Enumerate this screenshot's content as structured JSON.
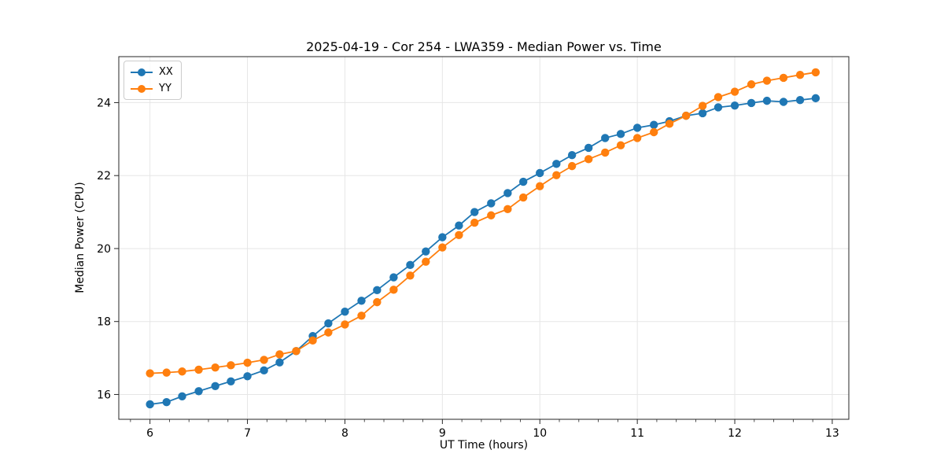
{
  "figure": {
    "title": "2025-04-19 - Cor 254 - LWA359 - Median Power vs. Time"
  },
  "chart_data": {
    "type": "line",
    "title": "2025-04-19 - Cor 254 - LWA359 - Median Power vs. Time",
    "xlabel": "UT Time (hours)",
    "ylabel": "Median Power (CPU)",
    "xlim": [
      5.68,
      13.17
    ],
    "ylim": [
      15.32,
      25.26
    ],
    "xticks": [
      6,
      7,
      8,
      9,
      10,
      11,
      12,
      13
    ],
    "yticks": [
      16,
      18,
      20,
      22,
      24
    ],
    "minor_xtick_step": 0.2,
    "grid": true,
    "legend": {
      "position": "upper-left",
      "entries": [
        "XX",
        "YY"
      ]
    },
    "x": [
      6.0,
      6.17,
      6.33,
      6.5,
      6.67,
      6.83,
      7.0,
      7.17,
      7.33,
      7.5,
      7.67,
      7.83,
      8.0,
      8.17,
      8.33,
      8.5,
      8.67,
      8.83,
      9.0,
      9.17,
      9.33,
      9.5,
      9.67,
      9.83,
      10.0,
      10.17,
      10.33,
      10.5,
      10.67,
      10.83,
      11.0,
      11.17,
      11.33,
      11.5,
      11.67,
      11.83,
      12.0,
      12.17,
      12.33,
      12.5,
      12.67,
      12.83
    ],
    "series": [
      {
        "name": "XX",
        "color": "#1f77b4",
        "values": [
          15.73,
          15.79,
          15.95,
          16.09,
          16.23,
          16.36,
          16.5,
          16.66,
          16.88,
          17.19,
          17.6,
          17.95,
          18.27,
          18.57,
          18.86,
          19.21,
          19.55,
          19.92,
          20.31,
          20.63,
          21.0,
          21.24,
          21.52,
          21.83,
          22.07,
          22.32,
          22.56,
          22.76,
          23.03,
          23.14,
          23.31,
          23.39,
          23.49,
          23.64,
          23.71,
          23.87,
          23.92,
          23.99,
          24.05,
          24.02,
          24.07,
          24.12
        ]
      },
      {
        "name": "YY",
        "color": "#ff7f0e",
        "values": [
          16.58,
          16.6,
          16.63,
          16.68,
          16.74,
          16.8,
          16.87,
          16.95,
          17.1,
          17.19,
          17.48,
          17.7,
          17.92,
          18.16,
          18.53,
          18.87,
          19.26,
          19.64,
          20.03,
          20.37,
          20.71,
          20.91,
          21.08,
          21.4,
          21.71,
          22.01,
          22.26,
          22.45,
          22.63,
          22.83,
          23.03,
          23.19,
          23.42,
          23.64,
          23.91,
          24.15,
          24.3,
          24.5,
          24.6,
          24.68,
          24.76,
          24.83
        ]
      }
    ]
  },
  "style_colors": {
    "grid": "#e6e6e6",
    "spine": "#262626",
    "tick": "#262626",
    "legend_border": "#cccccc"
  }
}
